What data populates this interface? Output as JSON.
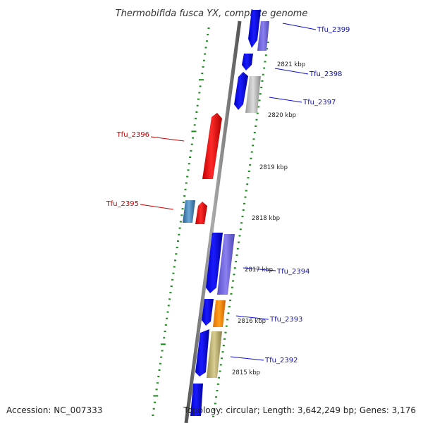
{
  "title": "Thermobifida fusca YX, complete genome",
  "footer": {
    "accession": "Accession: NC_007333",
    "summary": "Topology: circular; Length: 3,642,249 bp; Genes: 3,176"
  },
  "scale_labels": [
    "2821 kbp",
    "2820 kbp",
    "2819 kbp",
    "2818 kbp",
    "2817 kbp",
    "2816 kbp",
    "2815 kbp"
  ],
  "gene_labels": [
    {
      "text": "Tfu_2399",
      "strand": "forward",
      "color": "#1010b0"
    },
    {
      "text": "Tfu_2398",
      "strand": "forward",
      "color": "#1010b0"
    },
    {
      "text": "Tfu_2397",
      "strand": "forward",
      "color": "#1010b0"
    },
    {
      "text": "Tfu_2396",
      "strand": "reverse",
      "color": "#cc0000"
    },
    {
      "text": "Tfu_2395",
      "strand": "reverse",
      "color": "#cc0000"
    },
    {
      "text": "Tfu_2394",
      "strand": "forward",
      "color": "#1010b0"
    },
    {
      "text": "Tfu_2393",
      "strand": "forward",
      "color": "#1010b0"
    },
    {
      "text": "Tfu_2392",
      "strand": "forward",
      "color": "#1010b0"
    }
  ],
  "colors": {
    "backbone": "#808080",
    "forward_gene": "#1010e0",
    "reverse_gene": "#e81818",
    "tick": "#1a8a1a"
  }
}
